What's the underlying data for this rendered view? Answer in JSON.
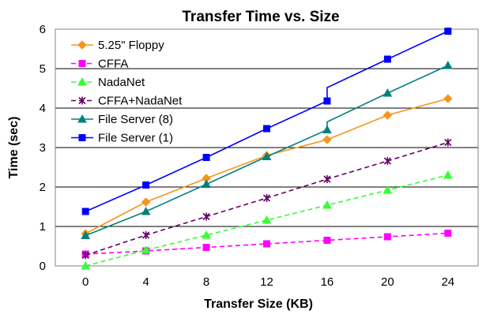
{
  "chart_data": {
    "type": "line",
    "title": "Transfer Time vs. Size",
    "xlabel": "Transfer Size (KB)",
    "ylabel": "Time (sec)",
    "xlim": [
      -2,
      26
    ],
    "ylim": [
      0,
      6
    ],
    "x_ticks": [
      0,
      4,
      8,
      12,
      16,
      20,
      24
    ],
    "y_ticks": [
      0,
      1,
      2,
      3,
      4,
      5,
      6
    ],
    "grid": "horizontal",
    "legend_position": "top-left",
    "series": [
      {
        "name": "5.25\" Floppy",
        "color": "#F7941D",
        "marker": "diamond",
        "dash": "solid",
        "x": [
          0,
          4,
          8,
          12,
          16,
          20,
          24
        ],
        "y": [
          0.82,
          1.62,
          2.22,
          2.8,
          3.2,
          3.82,
          4.24
        ]
      },
      {
        "name": "CFFA",
        "color": "#FF00FF",
        "marker": "square",
        "dash": "dashed",
        "x": [
          0,
          4,
          8,
          12,
          16,
          20,
          24
        ],
        "y": [
          0.3,
          0.38,
          0.47,
          0.56,
          0.65,
          0.74,
          0.83
        ]
      },
      {
        "name": "NadaNet",
        "color": "#33FF33",
        "marker": "triangle",
        "dash": "dashed",
        "x": [
          0,
          4,
          8,
          12,
          16,
          20,
          24
        ],
        "y": [
          0.0,
          0.4,
          0.78,
          1.16,
          1.54,
          1.92,
          2.3
        ]
      },
      {
        "name": "CFFA+NadaNet",
        "color": "#660066",
        "marker": "star",
        "dash": "dashed",
        "x": [
          0,
          4,
          8,
          12,
          16,
          20,
          24
        ],
        "y": [
          0.27,
          0.78,
          1.25,
          1.72,
          2.2,
          2.66,
          3.13
        ]
      },
      {
        "name": "File Server (8)",
        "color": "#008080",
        "marker": "triangle",
        "dash": "solid",
        "x": [
          0,
          4,
          8,
          12,
          16,
          16,
          20,
          24
        ],
        "y": [
          0.77,
          1.38,
          2.07,
          2.77,
          3.45,
          3.65,
          4.38,
          5.08
        ]
      },
      {
        "name": "File Server (1)",
        "color": "#0000FF",
        "marker": "square",
        "dash": "solid",
        "x": [
          0,
          4,
          8,
          12,
          16,
          16,
          20,
          24
        ],
        "y": [
          1.38,
          2.05,
          2.75,
          3.48,
          4.18,
          4.52,
          5.24,
          5.95
        ]
      }
    ]
  }
}
